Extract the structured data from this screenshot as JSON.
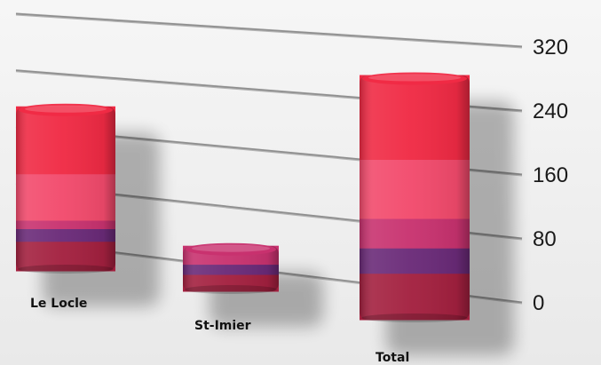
{
  "chart_data": {
    "type": "bar",
    "stacked": true,
    "title": "",
    "xlabel": "",
    "ylabel": "",
    "categories": [
      "Le Locle",
      "St-Imier",
      "Total"
    ],
    "y_ticks": [
      "0",
      "80",
      "160",
      "240",
      "320"
    ],
    "ylim": [
      0,
      320
    ],
    "grid": true,
    "series": [
      {
        "color": "#a3203f",
        "values": [
          35,
          20,
          55
        ]
      },
      {
        "color": "#6a2a78",
        "values": [
          15,
          12,
          30
        ]
      },
      {
        "color": "#c8326f",
        "values": [
          10,
          22,
          35
        ]
      },
      {
        "color": "#f24a6c",
        "values": [
          55,
          0,
          70
        ]
      },
      {
        "color": "#f02a44",
        "values": [
          80,
          0,
          100
        ]
      }
    ]
  }
}
